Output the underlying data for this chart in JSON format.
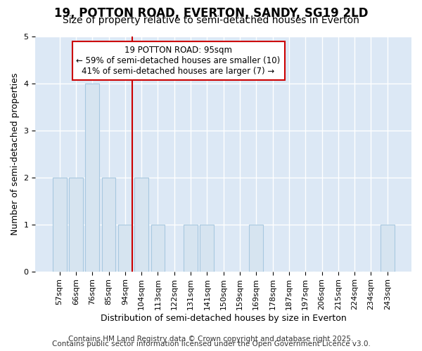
{
  "title": "19, POTTON ROAD, EVERTON, SANDY, SG19 2LD",
  "subtitle": "Size of property relative to semi-detached houses in Everton",
  "xlabel": "Distribution of semi-detached houses by size in Everton",
  "ylabel": "Number of semi-detached properties",
  "categories": [
    "57sqm",
    "66sqm",
    "76sqm",
    "85sqm",
    "94sqm",
    "104sqm",
    "113sqm",
    "122sqm",
    "131sqm",
    "141sqm",
    "150sqm",
    "159sqm",
    "169sqm",
    "178sqm",
    "187sqm",
    "197sqm",
    "206sqm",
    "215sqm",
    "224sqm",
    "234sqm",
    "243sqm"
  ],
  "values": [
    2,
    2,
    4,
    2,
    1,
    2,
    1,
    0,
    1,
    1,
    0,
    0,
    1,
    0,
    0,
    0,
    0,
    0,
    0,
    0,
    1
  ],
  "bar_color": "#d6e4f0",
  "bar_edge_color": "#a8c8e0",
  "property_line_index": 4,
  "annotation_line1": "19 POTTON ROAD: 95sqm",
  "annotation_line2": "← 59% of semi-detached houses are smaller (10)",
  "annotation_line3": "41% of semi-detached houses are larger (7) →",
  "box_facecolor": "#ffffff",
  "box_edgecolor": "#cc0000",
  "line_color": "#cc0000",
  "ylim": [
    0,
    5
  ],
  "yticks": [
    0,
    1,
    2,
    3,
    4,
    5
  ],
  "footer1": "Contains HM Land Registry data © Crown copyright and database right 2025.",
  "footer2": "Contains public sector information licensed under the Open Government Licence v3.0.",
  "bg_color": "#ffffff",
  "plot_bg_color": "#dce8f5",
  "title_fontsize": 12,
  "subtitle_fontsize": 10,
  "axis_label_fontsize": 9,
  "tick_fontsize": 8,
  "annotation_fontsize": 8.5,
  "footer_fontsize": 7.5,
  "grid_color": "#ffffff",
  "grid_linewidth": 1.0
}
